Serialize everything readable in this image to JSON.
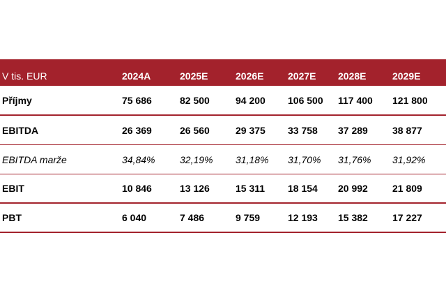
{
  "table": {
    "unit_label": "V tis. EUR",
    "columns": [
      "2024A",
      "2025E",
      "2026E",
      "2027E",
      "2028E",
      "2029E"
    ],
    "rows": [
      {
        "label": "Příjmy",
        "values": [
          "75 686",
          "82 500",
          "94 200",
          "106 500",
          "117 400",
          "121 800"
        ]
      },
      {
        "label": "EBITDA",
        "values": [
          "26 369",
          "26 560",
          "29 375",
          "33 758",
          "37 289",
          "38 877"
        ]
      },
      {
        "label": "EBITDA marže",
        "values": [
          "34,84%",
          "32,19%",
          "31,18%",
          "31,70%",
          "31,76%",
          "31,92%"
        ]
      },
      {
        "label": "EBIT",
        "values": [
          "10 846",
          "13 126",
          "15 311",
          "18 154",
          "20 992",
          "21 809"
        ]
      },
      {
        "label": "PBT",
        "values": [
          "6 040",
          "7 486",
          "9 759",
          "12 193",
          "15 382",
          "17 227"
        ]
      }
    ]
  },
  "colors": {
    "header_bg": "#a3222c",
    "header_text": "#ffffff",
    "rule": "#a3222c"
  }
}
